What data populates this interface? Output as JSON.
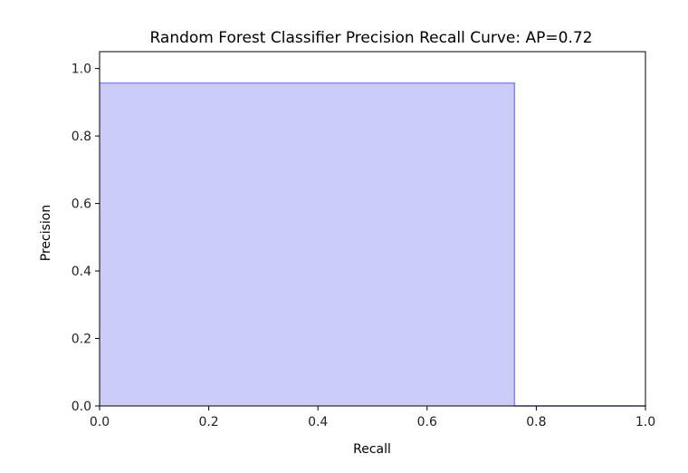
{
  "chart_data": {
    "type": "area",
    "title": "Random Forest Classifier Precision Recall Curve: AP=0.72",
    "xlabel": "Recall",
    "ylabel": "Precision",
    "xlim": [
      0.0,
      1.0
    ],
    "ylim": [
      0.0,
      1.05
    ],
    "grid": false,
    "step": "post",
    "x": [
      0.0,
      0.76,
      0.76,
      1.0
    ],
    "y": [
      0.957,
      0.957,
      0.0,
      0.0
    ],
    "fill_color": "#ccccf9",
    "line_color": "#8888f0",
    "xticks": [
      0.0,
      0.2,
      0.4,
      0.6,
      0.8,
      1.0
    ],
    "xtick_labels": [
      "0.0",
      "0.2",
      "0.4",
      "0.6",
      "0.8",
      "1.0"
    ],
    "yticks": [
      0.0,
      0.2,
      0.4,
      0.6,
      0.8,
      1.0
    ],
    "ytick_labels": [
      "0.0",
      "0.2",
      "0.4",
      "0.6",
      "0.8",
      "1.0"
    ]
  }
}
